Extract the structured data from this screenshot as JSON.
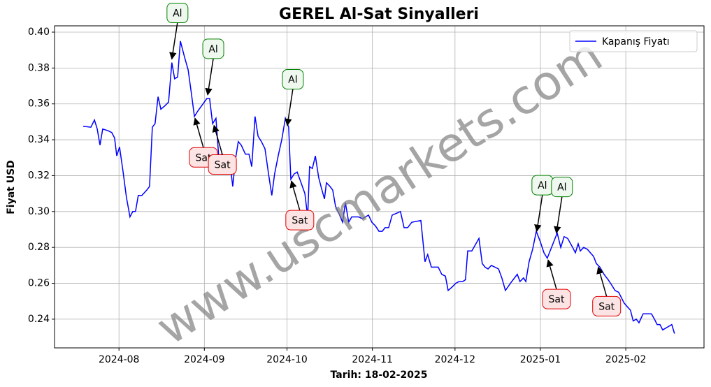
{
  "chart_data": {
    "type": "line",
    "title": "GEREL Al-Sat Sinyalleri",
    "xlabel": "Tarih: 18-02-2025",
    "ylabel": "Fiyat USD",
    "watermark": "www.uscmarkets.com",
    "legend": "upper right",
    "grid": true,
    "xlim": [
      -10.4,
      225.4
    ],
    "xticks": [
      {
        "value": 13,
        "label": "2024-08"
      },
      {
        "value": 44,
        "label": "2024-09"
      },
      {
        "value": 74,
        "label": "2024-10"
      },
      {
        "value": 105,
        "label": "2024-11"
      },
      {
        "value": 135,
        "label": "2024-12"
      },
      {
        "value": 166,
        "label": "2025-01"
      },
      {
        "value": 197,
        "label": "2025-02"
      }
    ],
    "ylim": [
      0.224,
      0.4035
    ],
    "yticks": [
      0.24,
      0.26,
      0.28,
      {
        "value": 0.3,
        "label": "0.30"
      },
      0.32,
      0.34,
      0.36,
      0.38,
      {
        "value": 0.4,
        "label": "0.40"
      }
    ],
    "series": [
      {
        "name": "Kapanış Fiyatı",
        "color": "#0000ff",
        "x": [
          0,
          2.8,
          4.1,
          5.1,
          6.1,
          7.1,
          9.1,
          10.4,
          11.4,
          12.2,
          13.2,
          14.5,
          15.7,
          17,
          18,
          19,
          20,
          21.3,
          23.1,
          24.1,
          25.1,
          26.1,
          27.2,
          28.2,
          29.7,
          31,
          32.2,
          33.2,
          34.3,
          35.3,
          36.8,
          38.1,
          39.1,
          40.4,
          41.6,
          44.9,
          45.9,
          47,
          48.2,
          49.2,
          50.5,
          51.8,
          53,
          54.3,
          55.3,
          56.3,
          57.4,
          58.9,
          60.2,
          61.2,
          62.4,
          63.5,
          64.7,
          66,
          67.3,
          68.5,
          69.5,
          70.8,
          72.1,
          73.4,
          74.6,
          75.4,
          76.6,
          77.7,
          78.9,
          80.5,
          81.5,
          82.2,
          83.2,
          84.3,
          85.5,
          86.5,
          87.6,
          88.3,
          89.6,
          90.6,
          91.6,
          93.1,
          94.2,
          95.2,
          96.4,
          97.5,
          100,
          101.3,
          102.5,
          103.6,
          104.8,
          106.1,
          107.4,
          108.6,
          109.6,
          110.9,
          112.2,
          113.7,
          115.2,
          116.5,
          117.8,
          119.3,
          122.6,
          124.1,
          125.1,
          126.4,
          128.9,
          130.2,
          131.5,
          132.5,
          134,
          135.3,
          136.5,
          137.8,
          138.8,
          139.6,
          141.1,
          143.7,
          144.9,
          145.9,
          147,
          148.2,
          150.8,
          152,
          153.3,
          155.6,
          157.6,
          158.6,
          159.9,
          160.7,
          161.9,
          163.2,
          164.5,
          166,
          167.3,
          168.5,
          170.8,
          172.1,
          173.4,
          174.6,
          175.9,
          177.7,
          178.7,
          179.7,
          180.5,
          181.7,
          183,
          185.3,
          186.3,
          187.6,
          189.1,
          190.6,
          191.9,
          193.1,
          194.4,
          196.4,
          197.5,
          198.7,
          199.7,
          200.8,
          201.8,
          203.3,
          206.3,
          207.4,
          208.4,
          209.4,
          210.4,
          213.7,
          214.7
        ],
        "values": [
          0.3475,
          0.347,
          0.351,
          0.346,
          0.337,
          0.346,
          0.345,
          0.344,
          0.341,
          0.331,
          0.336,
          0.322,
          0.308,
          0.297,
          0.3,
          0.3,
          0.309,
          0.309,
          0.312,
          0.314,
          0.347,
          0.349,
          0.364,
          0.357,
          0.359,
          0.361,
          0.383,
          0.374,
          0.375,
          0.395,
          0.386,
          0.379,
          0.368,
          0.353,
          0.356,
          0.363,
          0.363,
          0.349,
          0.352,
          0.331,
          0.332,
          0.33,
          0.331,
          0.314,
          0.329,
          0.339,
          0.337,
          0.332,
          0.332,
          0.325,
          0.353,
          0.342,
          0.339,
          0.335,
          0.321,
          0.309,
          0.321,
          0.331,
          0.34,
          0.352,
          0.347,
          0.318,
          0.321,
          0.322,
          0.317,
          0.31,
          0.297,
          0.325,
          0.324,
          0.331,
          0.319,
          0.313,
          0.307,
          0.316,
          0.314,
          0.312,
          0.303,
          0.298,
          0.294,
          0.305,
          0.294,
          0.297,
          0.297,
          0.296,
          0.297,
          0.298,
          0.294,
          0.292,
          0.289,
          0.289,
          0.291,
          0.291,
          0.298,
          0.299,
          0.3,
          0.291,
          0.291,
          0.294,
          0.295,
          0.272,
          0.276,
          0.269,
          0.269,
          0.265,
          0.264,
          0.256,
          0.258,
          0.26,
          0.261,
          0.261,
          0.262,
          0.278,
          0.278,
          0.285,
          0.271,
          0.269,
          0.268,
          0.27,
          0.268,
          0.263,
          0.256,
          0.261,
          0.265,
          0.261,
          0.263,
          0.261,
          0.272,
          0.279,
          0.289,
          0.283,
          0.277,
          0.274,
          0.283,
          0.288,
          0.28,
          0.286,
          0.285,
          0.28,
          0.277,
          0.282,
          0.278,
          0.28,
          0.279,
          0.275,
          0.271,
          0.269,
          0.265,
          0.262,
          0.259,
          0.256,
          0.255,
          0.249,
          0.247,
          0.245,
          0.239,
          0.24,
          0.238,
          0.243,
          0.243,
          0.24,
          0.237,
          0.237,
          0.234,
          0.237,
          0.232
        ]
      }
    ],
    "annotations": [
      {
        "text": "Al",
        "x": 32.2,
        "y": 0.385,
        "color": "#008000",
        "fill": "#eef8ee"
      },
      {
        "text": "Al",
        "x": 45.2,
        "y": 0.365,
        "color": "#008000",
        "fill": "#eef8ee"
      },
      {
        "text": "Al",
        "x": 74.1,
        "y": 0.348,
        "color": "#008000",
        "fill": "#eef8ee"
      },
      {
        "text": "Al",
        "x": 164.7,
        "y": 0.289,
        "color": "#008000",
        "fill": "#eef8ee"
      },
      {
        "text": "Al",
        "x": 171.8,
        "y": 0.288,
        "color": "#008000",
        "fill": "#eef8ee"
      },
      {
        "text": "Sat",
        "x": 40.6,
        "y": 0.352,
        "color": "#e00000",
        "fill": "#fde4e4"
      },
      {
        "text": "Sat",
        "x": 47.5,
        "y": 0.348,
        "color": "#e00000",
        "fill": "#fde4e4"
      },
      {
        "text": "Sat",
        "x": 75.6,
        "y": 0.317,
        "color": "#e00000",
        "fill": "#fde4e4"
      },
      {
        "text": "Sat",
        "x": 168.8,
        "y": 0.273,
        "color": "#e00000",
        "fill": "#fde4e4"
      },
      {
        "text": "Sat",
        "x": 187,
        "y": 0.269,
        "color": "#e00000",
        "fill": "#fde4e4"
      }
    ]
  }
}
